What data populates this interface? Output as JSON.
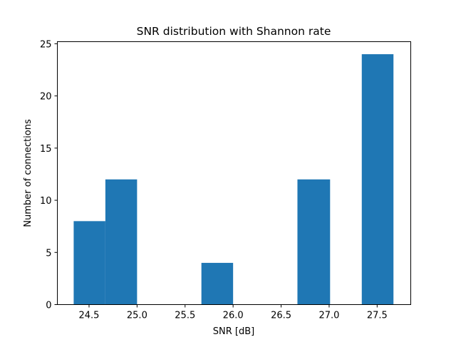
{
  "chart_data": {
    "type": "bar",
    "title": "SNR distribution with Shannon rate",
    "xlabel": "SNR [dB]",
    "ylabel": "Number of connections",
    "xlim": [
      24.17,
      27.85
    ],
    "ylim": [
      0,
      25.2
    ],
    "xticks": [
      24.5,
      25.0,
      25.5,
      26.0,
      26.5,
      27.0,
      27.5
    ],
    "xtick_labels": [
      "24.5",
      "25.0",
      "25.5",
      "26.0",
      "26.5",
      "27.0",
      "27.5"
    ],
    "yticks": [
      0,
      5,
      10,
      15,
      20,
      25
    ],
    "ytick_labels": [
      "0",
      "5",
      "10",
      "15",
      "20",
      "25"
    ],
    "bins": [
      {
        "x0": 24.34,
        "x1": 24.67,
        "value": 8
      },
      {
        "x0": 24.67,
        "x1": 25.0,
        "value": 12
      },
      {
        "x0": 25.0,
        "x1": 25.34,
        "value": 0
      },
      {
        "x0": 25.34,
        "x1": 25.67,
        "value": 0
      },
      {
        "x0": 25.67,
        "x1": 26.0,
        "value": 4
      },
      {
        "x0": 26.0,
        "x1": 26.34,
        "value": 0
      },
      {
        "x0": 26.34,
        "x1": 26.67,
        "value": 0
      },
      {
        "x0": 26.67,
        "x1": 27.01,
        "value": 12
      },
      {
        "x0": 27.01,
        "x1": 27.34,
        "value": 0
      },
      {
        "x0": 27.34,
        "x1": 27.67,
        "value": 24
      }
    ],
    "bar_color": "#1f77b4",
    "grid": false,
    "legend": null
  }
}
